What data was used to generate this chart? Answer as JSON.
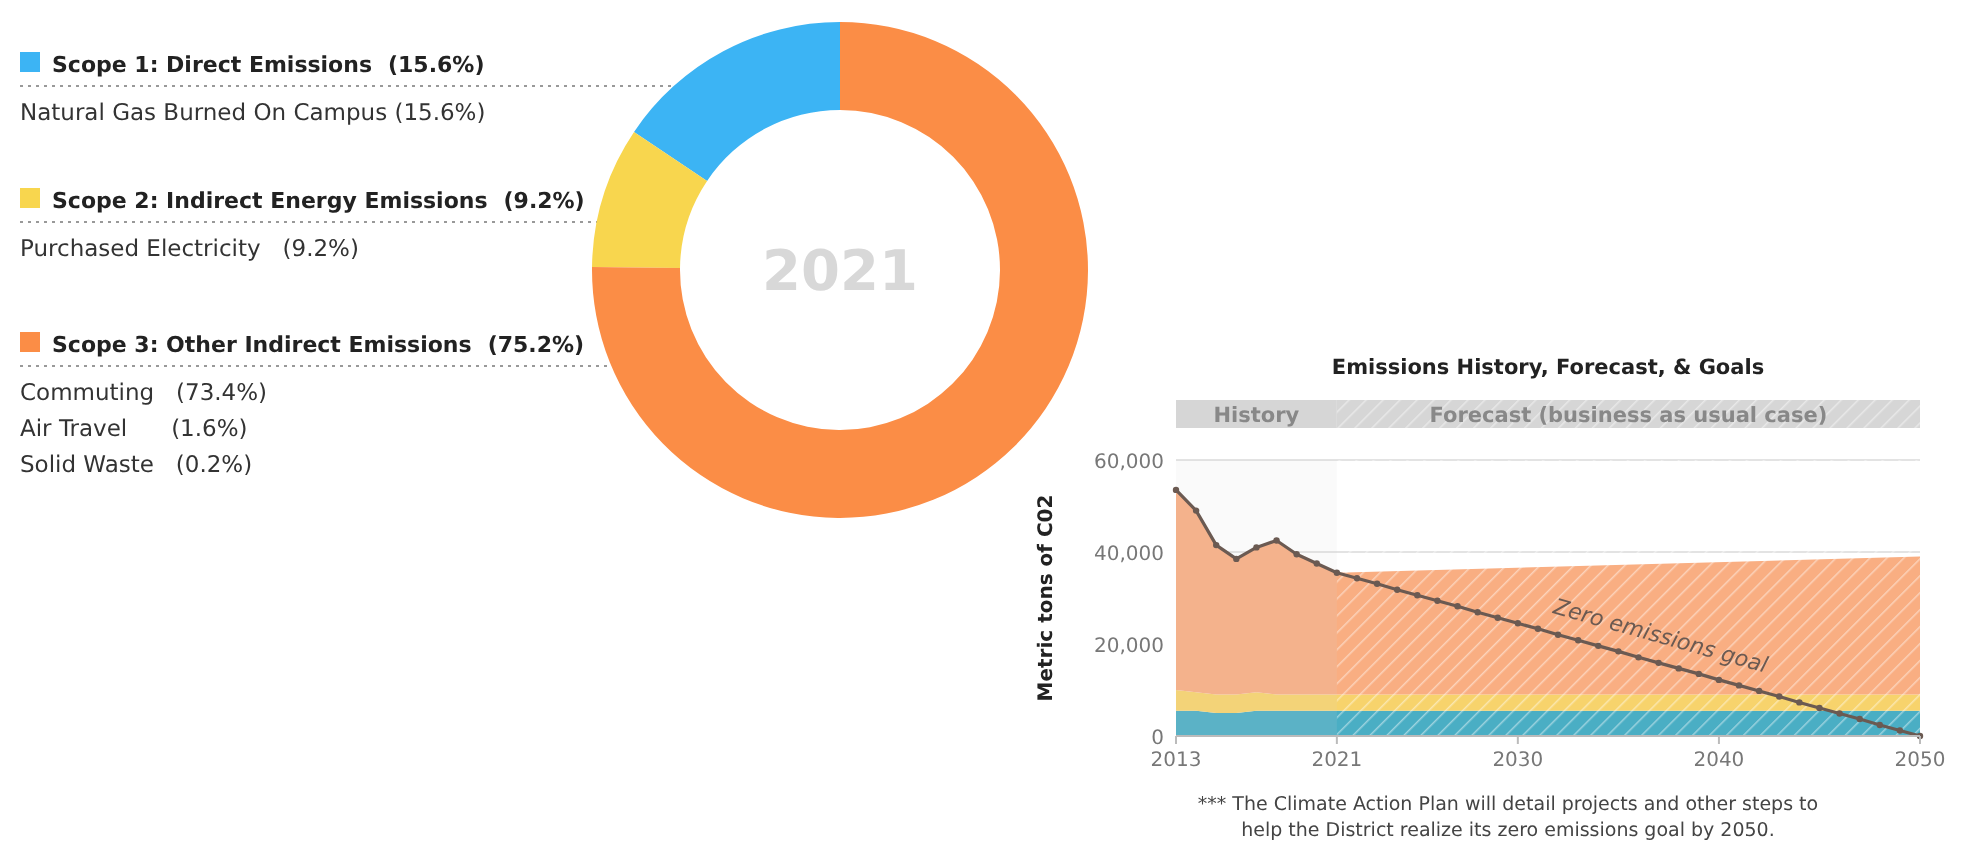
{
  "chart_data": [
    {
      "type": "donut",
      "title": "2021",
      "categories": [
        "Scope 1: Direct Emissions",
        "Scope 2: Indirect Energy Emissions",
        "Scope 3: Other Indirect Emissions"
      ],
      "values": [
        15.6,
        9.2,
        75.2
      ],
      "value_labels": [
        "(15.6%)",
        "(9.2%)",
        "(75.2%)"
      ],
      "colors": [
        "#3cb4f4",
        "#f8d64e",
        "#fb8d46"
      ],
      "legend": "left",
      "annotations": [
        "Natural Gas Burned On Campus (15.6%)",
        "Purchased Electricity   (9.2%)",
        "Commuting   (73.4%)",
        "Air Travel      (1.6%)",
        "Solid Waste   (0.2%)"
      ]
    },
    {
      "type": "area",
      "stacked": true,
      "title": "Emissions History, Forecast, & Goals",
      "ylabel": "Metric tons of C02",
      "x": [
        2013,
        2014,
        2015,
        2016,
        2017,
        2018,
        2019,
        2020,
        2021,
        2050
      ],
      "series": [
        {
          "color": "#4aaec4",
          "values": [
            5500,
            5500,
            5000,
            5000,
            5500,
            5500,
            5500,
            5500,
            5500,
            5500
          ]
        },
        {
          "color": "#f7d36c",
          "values": [
            4500,
            4000,
            4000,
            4000,
            4000,
            3500,
            3500,
            3500,
            3500,
            3500
          ]
        },
        {
          "color": "#f9ae82",
          "values": [
            43500,
            39500,
            32500,
            29500,
            31500,
            33500,
            30500,
            28500,
            26500,
            30000
          ]
        },
        {
          "type": "line",
          "name": "Zero emissions goal",
          "color": "#6b5a52",
          "marker": "circle",
          "x": [
            2013,
            2014,
            2015,
            2016,
            2017,
            2018,
            2019,
            2020,
            2021,
            2022,
            2023,
            2024,
            2025,
            2026,
            2027,
            2028,
            2029,
            2030,
            2031,
            2032,
            2033,
            2034,
            2035,
            2036,
            2037,
            2038,
            2039,
            2040,
            2041,
            2042,
            2043,
            2044,
            2045,
            2046,
            2047,
            2048,
            2049,
            2050
          ],
          "values": [
            53500,
            49000,
            41500,
            38500,
            41000,
            42500,
            39500,
            37500,
            35500,
            34300,
            33100,
            31800,
            30600,
            29400,
            28200,
            26900,
            25700,
            24500,
            23300,
            22000,
            20800,
            19600,
            18400,
            17100,
            15900,
            14700,
            13500,
            12200,
            11000,
            9800,
            8600,
            7300,
            6100,
            4900,
            3700,
            2400,
            1200,
            0
          ]
        }
      ],
      "xlim": [
        2013,
        2050
      ],
      "xticks": [
        2013,
        2021,
        2030,
        2040,
        2050
      ],
      "ylim": [
        0,
        60000
      ],
      "yticks": [
        {
          "value": 0,
          "label": "0"
        },
        {
          "value": 20000,
          "label": "20,000"
        },
        {
          "value": 40000,
          "label": "40,000"
        },
        {
          "value": 60000,
          "label": "60,000"
        }
      ],
      "grid": "y",
      "bands": [
        {
          "axis": "x",
          "from": 2013,
          "to": 2021,
          "label": "History",
          "color": "#d6d6d6"
        },
        {
          "axis": "x",
          "from": 2021,
          "to": 2050,
          "label": "Forecast (business as usual case)",
          "color": "#d6d6d6"
        }
      ],
      "annotations": [
        "*** The Climate Action Plan will detail projects and other steps to help the District realize its zero emissions goal by 2050."
      ]
    }
  ]
}
